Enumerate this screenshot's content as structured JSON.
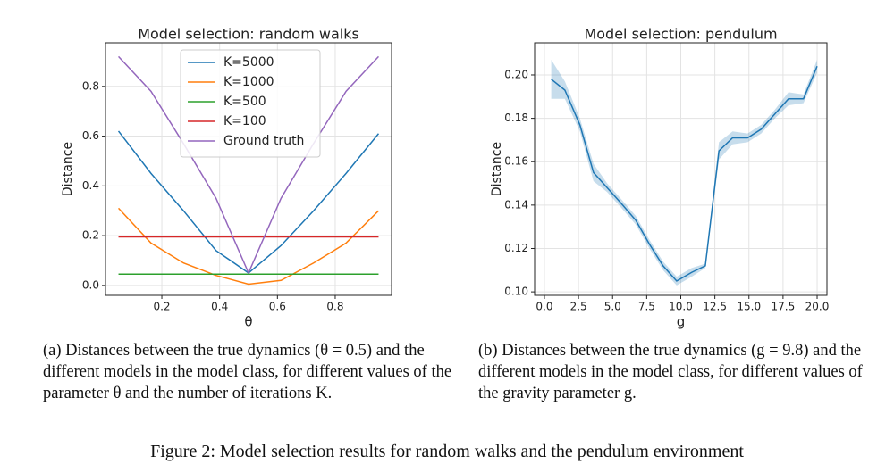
{
  "chart_data": [
    {
      "type": "line",
      "title": "Model selection: random walks",
      "xlabel": "θ",
      "ylabel": "Distance",
      "x": [
        0.05,
        0.1625,
        0.275,
        0.3875,
        0.5,
        0.6125,
        0.725,
        0.8375,
        0.95
      ],
      "series": [
        {
          "name": "K=5000",
          "color": "#1f77b4",
          "values": [
            0.62,
            0.45,
            0.3,
            0.14,
            0.05,
            0.16,
            0.3,
            0.45,
            0.61
          ]
        },
        {
          "name": "K=1000",
          "color": "#ff7f0e",
          "values": [
            0.31,
            0.17,
            0.09,
            0.04,
            0.005,
            0.02,
            0.09,
            0.17,
            0.3
          ]
        },
        {
          "name": "K=500",
          "color": "#2ca02c",
          "values": [
            0.045,
            0.045,
            0.045,
            0.045,
            0.045,
            0.045,
            0.045,
            0.045,
            0.045
          ]
        },
        {
          "name": "K=100",
          "color": "#d62728",
          "values": [
            0.195,
            0.195,
            0.195,
            0.195,
            0.195,
            0.195,
            0.195,
            0.195,
            0.195
          ]
        },
        {
          "name": "Ground truth",
          "color": "#9467bd",
          "values": [
            0.92,
            0.78,
            0.57,
            0.35,
            0.05,
            0.35,
            0.57,
            0.78,
            0.92
          ]
        }
      ],
      "xlim": [
        0.005,
        0.995
      ],
      "ylim": [
        -0.04,
        0.975
      ],
      "xticks": [
        0.2,
        0.4,
        0.6,
        0.8
      ],
      "yticks": [
        {
          "value": 0,
          "label": "0.0"
        },
        0.2,
        0.4,
        0.6,
        0.8
      ],
      "grid": true,
      "legend": "upper center"
    },
    {
      "type": "line",
      "title": "Model selection: pendulum",
      "xlabel": "g",
      "ylabel": "Distance",
      "x": [
        0.5,
        1.5,
        2.6,
        3.6,
        4.6,
        5.6,
        6.7,
        7.7,
        8.7,
        9.7,
        10.8,
        11.8,
        12.8,
        13.8,
        14.9,
        15.9,
        16.9,
        17.9,
        19.0,
        20.0
      ],
      "series": [
        {
          "name": null,
          "color": "#1f77b4",
          "values": [
            0.198,
            0.193,
            0.177,
            0.155,
            0.148,
            0.141,
            0.133,
            0.122,
            0.112,
            0.105,
            0.109,
            0.112,
            0.165,
            0.171,
            0.171,
            0.175,
            0.182,
            0.189,
            0.189,
            0.204
          ],
          "errors": [
            0.009,
            0.004,
            0.003,
            0.004,
            0.002,
            0.002,
            0.002,
            0.002,
            0.002,
            0.002,
            0.002,
            0.001,
            0.004,
            0.003,
            0.002,
            0.002,
            0.002,
            0.003,
            0.002,
            0.003
          ]
        }
      ],
      "xlim": [
        -0.72,
        20.72
      ],
      "ylim": [
        0.0984,
        0.2148
      ],
      "xticks": [
        {
          "value": 0,
          "label": "0.0"
        },
        2.5,
        {
          "value": 5,
          "label": "5.0"
        },
        7.5,
        {
          "value": 10,
          "label": "10.0"
        },
        12.5,
        {
          "value": 15,
          "label": "15.0"
        },
        17.5,
        {
          "value": 20,
          "label": "20.0"
        }
      ],
      "yticks": [
        {
          "value": 0.1,
          "label": "0.10"
        },
        0.12,
        0.14,
        0.16,
        0.18,
        {
          "value": 0.2,
          "label": "0.20"
        }
      ],
      "grid": true,
      "legend": null
    }
  ],
  "captions": {
    "a": "(a) Distances between the true dynamics (θ = 0.5) and the different models in the model class, for different values of the parameter θ and the number of iterations K.",
    "b": "(b) Distances between the true dynamics (g = 9.8) and the different models in the model class, for different values of the gravity parameter g.",
    "figure": "Figure 2: Model selection results for random walks and the pendulum environment"
  }
}
